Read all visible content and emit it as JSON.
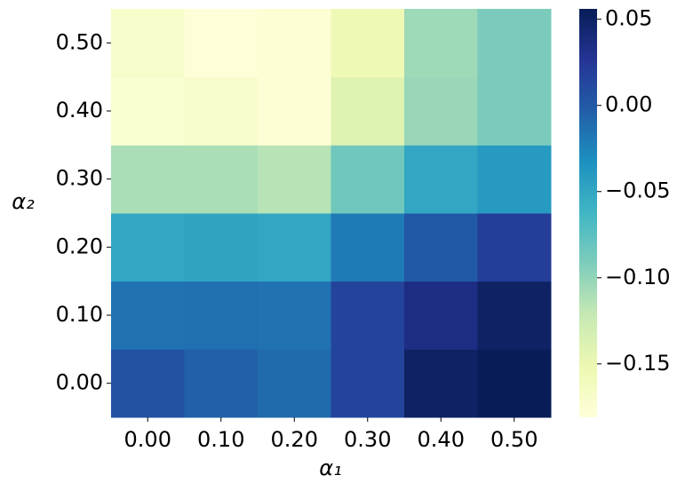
{
  "chart_data": {
    "type": "heatmap",
    "x_label": "α₁",
    "y_label": "α₂",
    "categories": [
      "0.00",
      "0.10",
      "0.20",
      "0.30",
      "0.40",
      "0.50"
    ],
    "y_categories": [
      "0.00",
      "0.10",
      "0.20",
      "0.30",
      "0.40",
      "0.50"
    ],
    "values": [
      [
        0.005,
        -0.005,
        -0.01,
        0.015,
        0.05,
        0.057
      ],
      [
        -0.015,
        -0.013,
        -0.015,
        0.015,
        0.035,
        0.05
      ],
      [
        -0.05,
        -0.048,
        -0.05,
        -0.02,
        0.0,
        0.02
      ],
      [
        -0.11,
        -0.11,
        -0.115,
        -0.085,
        -0.05,
        -0.04
      ],
      [
        -0.175,
        -0.17,
        -0.178,
        -0.14,
        -0.103,
        -0.09
      ],
      [
        -0.17,
        -0.18,
        -0.177,
        -0.155,
        -0.105,
        -0.09
      ]
    ],
    "colormap": "YlGnBu",
    "clim": [
      -0.181,
      0.056
    ],
    "cticks": [
      {
        "value": -0.15,
        "label": "−0.15"
      },
      {
        "value": -0.1,
        "label": "−0.10"
      },
      {
        "value": -0.05,
        "label": "−0.05"
      },
      {
        "value": 0,
        "label": "0.00"
      },
      0.05
    ]
  }
}
